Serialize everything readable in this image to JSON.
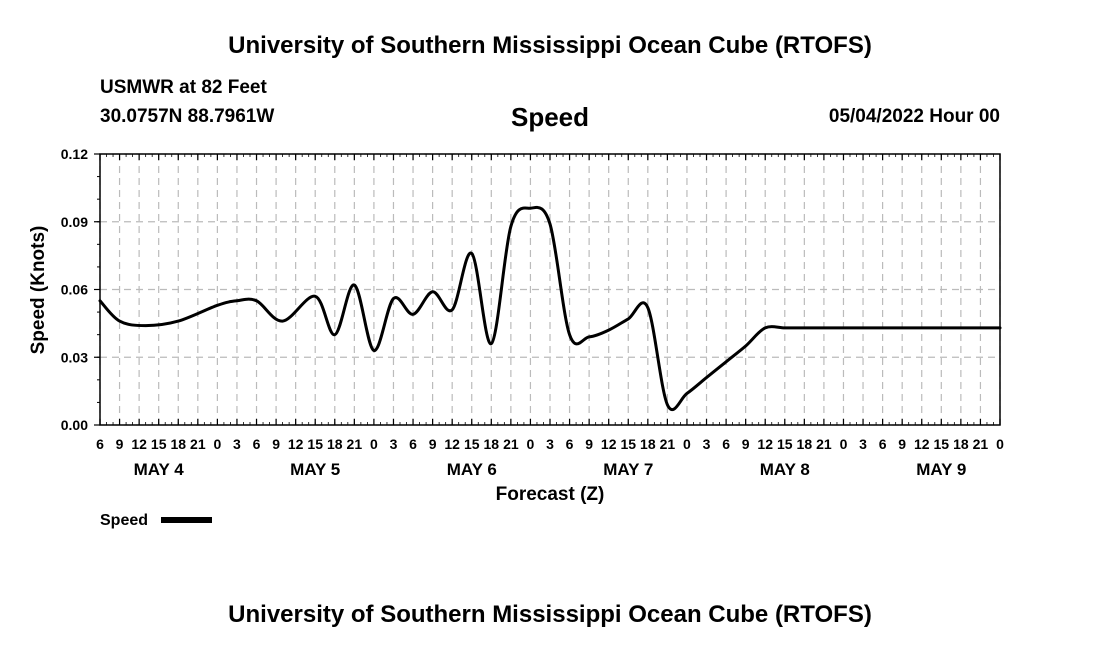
{
  "header": {
    "title": "University of Southern Mississippi Ocean Cube (RTOFS)",
    "station": "USMWR at 82 Feet",
    "coords": "30.0757N  88.7961W",
    "chart_title": "Speed",
    "run_time": "05/04/2022 Hour 00"
  },
  "footer": {
    "title": "University of Southern Mississippi Ocean Cube (RTOFS)"
  },
  "chart_data": {
    "type": "line",
    "title": "Speed",
    "xlabel": "Forecast (Z)",
    "ylabel": "Speed (Knots)",
    "xlim": [
      6,
      144
    ],
    "ylim": [
      0,
      0.12
    ],
    "yticks": [
      0.0,
      0.03,
      0.06,
      0.09,
      0.12
    ],
    "ytick_labels": [
      "0.00",
      "0.03",
      "0.06",
      "0.09",
      "0.12"
    ],
    "xtick_hours": [
      6,
      9,
      12,
      15,
      18,
      21,
      24,
      27,
      30,
      33,
      36,
      39,
      42,
      45,
      48,
      51,
      54,
      57,
      60,
      63,
      66,
      69,
      72,
      75,
      78,
      81,
      84,
      87,
      90,
      93,
      96,
      99,
      102,
      105,
      108,
      111,
      114,
      117,
      120,
      123,
      126,
      129,
      132,
      135,
      138,
      141,
      144
    ],
    "xtick_labels": [
      "6",
      "9",
      "12",
      "15",
      "18",
      "21",
      "0",
      "3",
      "6",
      "9",
      "12",
      "15",
      "18",
      "21",
      "0",
      "3",
      "6",
      "9",
      "12",
      "15",
      "18",
      "21",
      "0",
      "3",
      "6",
      "9",
      "12",
      "15",
      "18",
      "21",
      "0",
      "3",
      "6",
      "9",
      "12",
      "15",
      "18",
      "21",
      "0",
      "3",
      "6",
      "9",
      "12",
      "15",
      "18",
      "21",
      "0"
    ],
    "day_labels": [
      {
        "label": "MAY 4",
        "hour": 15
      },
      {
        "label": "MAY 5",
        "hour": 39
      },
      {
        "label": "MAY 6",
        "hour": 63
      },
      {
        "label": "MAY 7",
        "hour": 87
      },
      {
        "label": "MAY 8",
        "hour": 111
      },
      {
        "label": "MAY 9",
        "hour": 135
      }
    ],
    "legend": {
      "label": "Speed",
      "position": "bottom-left"
    },
    "series": [
      {
        "name": "Speed",
        "x": [
          6,
          9,
          13,
          18,
          24,
          27,
          30,
          34,
          39,
          42,
          45,
          48,
          51,
          54,
          57,
          60,
          63,
          66,
          69,
          72,
          75,
          78,
          81,
          84,
          87,
          90,
          93,
          96,
          99,
          102,
          105,
          108,
          111,
          114,
          117,
          120,
          123,
          126,
          129,
          132,
          135,
          138,
          141,
          144
        ],
        "values": [
          0.055,
          0.046,
          0.044,
          0.046,
          0.053,
          0.055,
          0.055,
          0.046,
          0.057,
          0.04,
          0.062,
          0.033,
          0.056,
          0.049,
          0.059,
          0.051,
          0.076,
          0.036,
          0.088,
          0.096,
          0.089,
          0.04,
          0.039,
          0.042,
          0.047,
          0.052,
          0.009,
          0.014,
          0.021,
          0.028,
          0.035,
          0.043,
          0.043,
          0.043,
          0.043,
          0.043,
          0.043,
          0.043,
          0.043,
          0.043,
          0.043,
          0.043,
          0.043,
          0.043
        ]
      }
    ]
  }
}
